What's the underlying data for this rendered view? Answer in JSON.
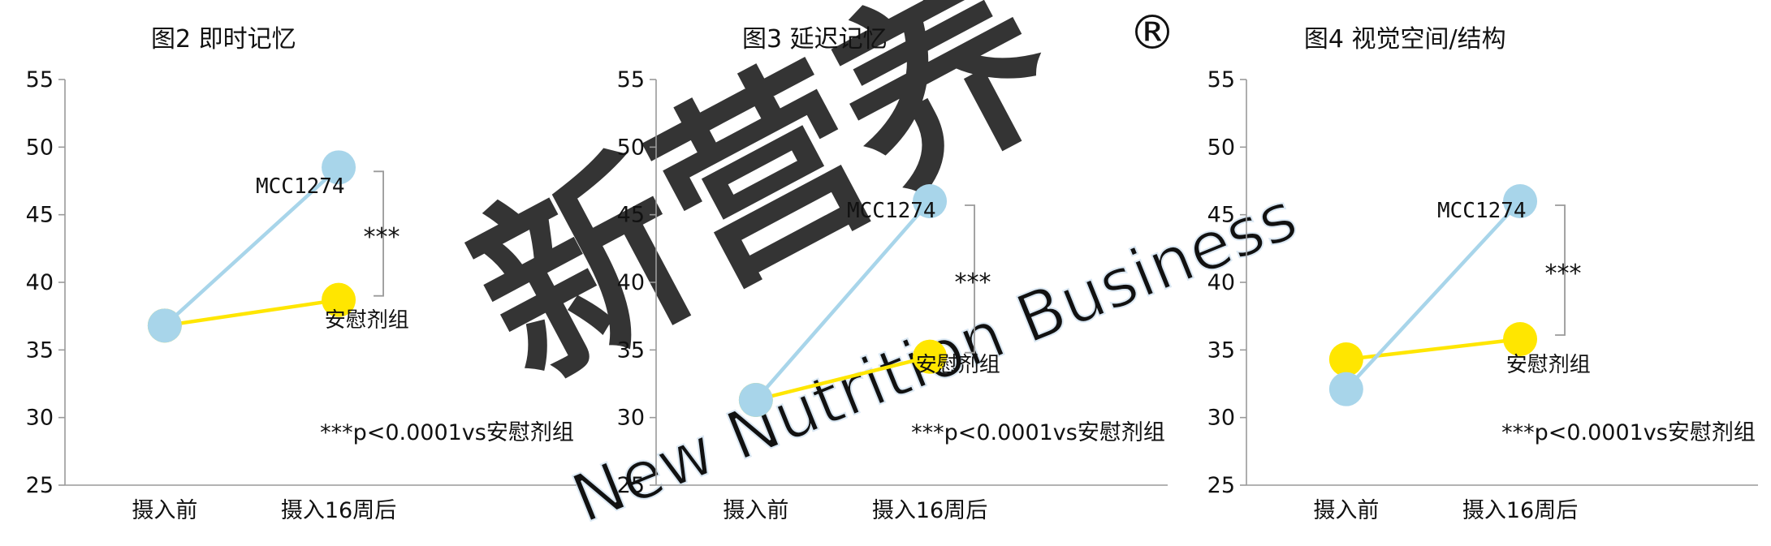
{
  "chart_data": [
    {
      "type": "line",
      "title": "图2 即时记忆",
      "categories": [
        "摄入前",
        "摄入16周后"
      ],
      "ylim": [
        25,
        55
      ],
      "yticks": [
        25,
        30,
        35,
        40,
        45,
        50,
        55
      ],
      "series": [
        {
          "name": "MCC1274",
          "values": [
            36.8,
            48.5
          ],
          "color": "#a8d5ea"
        },
        {
          "name": "安慰剂组",
          "values": [
            36.8,
            38.7
          ],
          "color": "#ffe600"
        }
      ],
      "significance": "***",
      "note": "***p<0.0001vs安慰剂组"
    },
    {
      "type": "line",
      "title": "图3 延迟记忆",
      "categories": [
        "摄入前",
        "摄入16周后"
      ],
      "ylim": [
        25,
        55
      ],
      "yticks": [
        25,
        30,
        35,
        40,
        45,
        50,
        55
      ],
      "series": [
        {
          "name": "MCC1274",
          "values": [
            31.3,
            46.0
          ],
          "color": "#a8d5ea"
        },
        {
          "name": "安慰剂组",
          "values": [
            31.3,
            34.5
          ],
          "color": "#ffe600"
        }
      ],
      "significance": "***",
      "note": "***p<0.0001vs安慰剂组"
    },
    {
      "type": "line",
      "title": "图4 视觉空间/结构",
      "categories": [
        "摄入前",
        "摄入16周后"
      ],
      "ylim": [
        25,
        55
      ],
      "yticks": [
        25,
        30,
        35,
        40,
        45,
        50,
        55
      ],
      "series": [
        {
          "name": "MCC1274",
          "values": [
            32.1,
            46.0
          ],
          "color": "#a8d5ea"
        },
        {
          "name": "安慰剂组",
          "values": [
            34.3,
            35.8
          ],
          "color": "#ffe600"
        }
      ],
      "significance": "***",
      "note": "***p<0.0001vs安慰剂组"
    }
  ],
  "watermark": {
    "text": "新营养",
    "subtext": "New Nutrition Business",
    "mark": "®",
    "color": "#dbe8f3"
  }
}
